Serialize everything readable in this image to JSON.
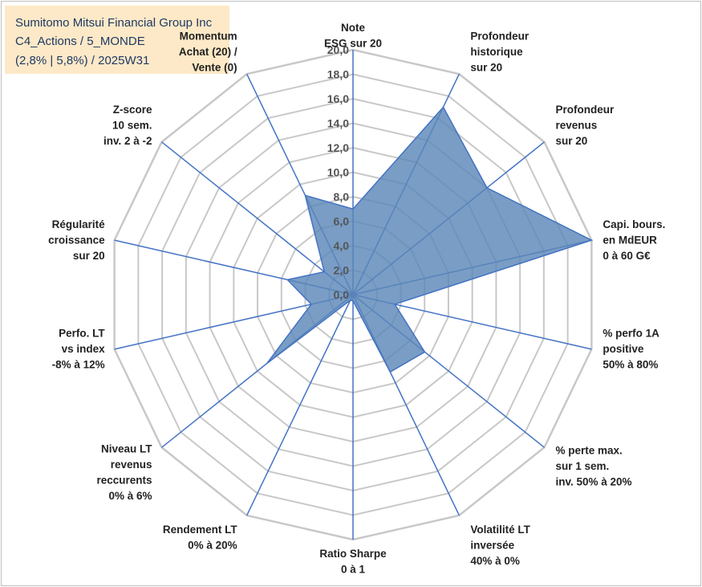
{
  "title": {
    "line1": "Sumitomo Mitsui Financial Group Inc",
    "line2": "C4_Actions / 5_MONDE",
    "line3": "(2,8% | 5,8%) / 2025W31"
  },
  "colors": {
    "grid": "#c8c8c8",
    "spoke": "#4472c4",
    "fill": "#5b87b8",
    "title_bg": "#fde9c7",
    "title_text": "#1f3864"
  },
  "chart_data": {
    "type": "radar",
    "rmin": 0,
    "rmax": 20,
    "tick_labels": [
      "0,0",
      "2,0",
      "4,0",
      "6,0",
      "8,0",
      "10,0",
      "12,0",
      "14,0",
      "16,0",
      "18,0",
      "20,0"
    ],
    "axes": [
      {
        "label": [
          "Note",
          "ESG sur 20"
        ],
        "value": 7
      },
      {
        "label": [
          "Profondeur",
          "historique",
          "sur 20"
        ],
        "value": 17
      },
      {
        "label": [
          "Profondeur",
          "revenus",
          "sur 20"
        ],
        "value": 14
      },
      {
        "label": [
          "Capi. bours.",
          "en MdEUR",
          "0 à 60 G€"
        ],
        "value": 20
      },
      {
        "label": [
          "% perfo 1A",
          "positive",
          "50% à 80%"
        ],
        "value": 3.5
      },
      {
        "label": [
          "% perte max.",
          "sur 1 sem.",
          "inv. 50% à 20%"
        ],
        "value": 7.5
      },
      {
        "label": [
          "Volatilité LT",
          "inversée",
          "40% à 0%"
        ],
        "value": 7
      },
      {
        "label": [
          "Ratio Sharpe",
          "0 à 1"
        ],
        "value": 0.5
      },
      {
        "label": [
          "Rendement LT",
          "0% à 20%"
        ],
        "value": 0.5
      },
      {
        "label": [
          "Niveau LT",
          "revenus",
          "reccurents",
          "0% à 6%"
        ],
        "value": 9
      },
      {
        "label": [
          "Perfo. LT",
          "vs index",
          "-8% à 12%"
        ],
        "value": 3.5
      },
      {
        "label": [
          "Régularité",
          "croissance",
          "sur 20"
        ],
        "value": 5.5
      },
      {
        "label": [
          "Z-score",
          "10 sem.",
          "inv. 2 à -2"
        ],
        "value": 3
      },
      {
        "label": [
          "Momentum",
          "Achat (20) /",
          "Vente (0)"
        ],
        "value": 9
      }
    ]
  }
}
